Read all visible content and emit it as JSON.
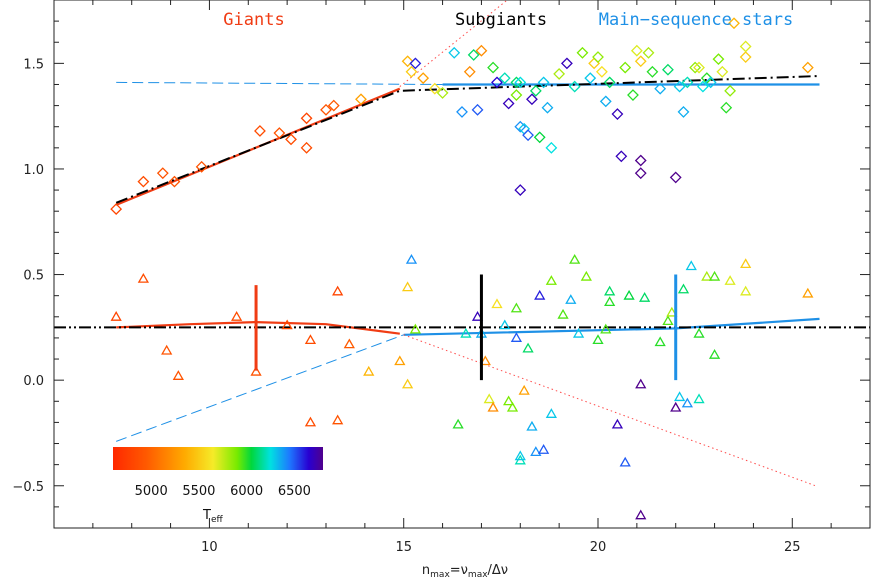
{
  "chart_data": {
    "type": "scatter",
    "title": "",
    "xlabel": "n_max = ν_max/Δν",
    "xlabel_parts": {
      "n": "n",
      "max1": "max",
      "eq": "=ν",
      "max2": "max",
      "rest": "/Δν"
    },
    "xlim": [
      6,
      27
    ],
    "ylim": [
      -0.7,
      1.8
    ],
    "x_ticks": [
      10,
      15,
      20,
      25
    ],
    "y_ticks": [
      -0.5,
      0.0,
      0.5,
      1.0,
      1.5
    ],
    "x_tick_labels": [
      "10",
      "15",
      "20",
      "25"
    ],
    "y_tick_labels": [
      "−0.5",
      "0.0",
      "0.5",
      "1.0",
      "1.5"
    ],
    "region_labels": {
      "giants": "Giants",
      "subgiants": "Subgiants",
      "main_sequence": "Main−sequence stars"
    },
    "colors": {
      "giants": "#f03c14",
      "subgiants": "#000000",
      "main_sequence": "#1e90e6",
      "guide_dotted": "#ff4b4b"
    },
    "colorbar": {
      "title": "T_eff",
      "title_main": "T",
      "title_sub": "eff",
      "range": [
        4600,
        6800
      ],
      "tick_labels": [
        "5000",
        "5500",
        "6000",
        "6500"
      ],
      "tick_values": [
        5000,
        5500,
        6000,
        6500
      ]
    },
    "series": [
      {
        "name": "upper sequence (diamonds)",
        "marker": "diamond",
        "points": [
          {
            "x": 7.6,
            "y": 0.81,
            "t": 4800
          },
          {
            "x": 8.3,
            "y": 0.94,
            "t": 4850
          },
          {
            "x": 8.8,
            "y": 0.98,
            "t": 4900
          },
          {
            "x": 9.1,
            "y": 0.94,
            "t": 4900
          },
          {
            "x": 9.8,
            "y": 1.01,
            "t": 4900
          },
          {
            "x": 11.3,
            "y": 1.18,
            "t": 4850
          },
          {
            "x": 11.8,
            "y": 1.17,
            "t": 4900
          },
          {
            "x": 12.1,
            "y": 1.14,
            "t": 4850
          },
          {
            "x": 12.5,
            "y": 1.24,
            "t": 4800
          },
          {
            "x": 12.5,
            "y": 1.1,
            "t": 4850
          },
          {
            "x": 13.0,
            "y": 1.28,
            "t": 4900
          },
          {
            "x": 13.2,
            "y": 1.3,
            "t": 4950
          },
          {
            "x": 13.9,
            "y": 1.33,
            "t": 5300
          },
          {
            "x": 15.1,
            "y": 1.51,
            "t": 5400
          },
          {
            "x": 15.2,
            "y": 1.46,
            "t": 5500
          },
          {
            "x": 15.3,
            "y": 1.5,
            "t": 6600
          },
          {
            "x": 15.5,
            "y": 1.43,
            "t": 5300
          },
          {
            "x": 15.8,
            "y": 1.38,
            "t": 5600
          },
          {
            "x": 16.0,
            "y": 1.36,
            "t": 5800
          },
          {
            "x": 16.3,
            "y": 1.55,
            "t": 6300
          },
          {
            "x": 16.5,
            "y": 1.27,
            "t": 6400
          },
          {
            "x": 16.7,
            "y": 1.46,
            "t": 5200
          },
          {
            "x": 16.8,
            "y": 1.54,
            "t": 6100
          },
          {
            "x": 16.9,
            "y": 1.28,
            "t": 6500
          },
          {
            "x": 17.0,
            "y": 1.56,
            "t": 5200
          },
          {
            "x": 17.3,
            "y": 1.48,
            "t": 6000
          },
          {
            "x": 17.4,
            "y": 1.41,
            "t": 6650
          },
          {
            "x": 17.6,
            "y": 1.43,
            "t": 6200
          },
          {
            "x": 17.7,
            "y": 1.31,
            "t": 6700
          },
          {
            "x": 17.9,
            "y": 1.35,
            "t": 5900
          },
          {
            "x": 17.9,
            "y": 1.41,
            "t": 6100
          },
          {
            "x": 18.0,
            "y": 1.2,
            "t": 6400
          },
          {
            "x": 18.0,
            "y": 1.41,
            "t": 6250
          },
          {
            "x": 18.1,
            "y": 1.19,
            "t": 6300
          },
          {
            "x": 18.2,
            "y": 1.16,
            "t": 6500
          },
          {
            "x": 18.3,
            "y": 1.33,
            "t": 6700
          },
          {
            "x": 18.4,
            "y": 1.37,
            "t": 6100
          },
          {
            "x": 18.5,
            "y": 1.15,
            "t": 6050
          },
          {
            "x": 18.6,
            "y": 1.41,
            "t": 6300
          },
          {
            "x": 18.7,
            "y": 1.29,
            "t": 6350
          },
          {
            "x": 18.8,
            "y": 1.1,
            "t": 6250
          },
          {
            "x": 18.0,
            "y": 0.9,
            "t": 6700
          },
          {
            "x": 19.0,
            "y": 1.45,
            "t": 5800
          },
          {
            "x": 19.2,
            "y": 1.5,
            "t": 6700
          },
          {
            "x": 19.4,
            "y": 1.39,
            "t": 6200
          },
          {
            "x": 19.6,
            "y": 1.55,
            "t": 5900
          },
          {
            "x": 19.8,
            "y": 1.43,
            "t": 6300
          },
          {
            "x": 19.9,
            "y": 1.5,
            "t": 5500
          },
          {
            "x": 20.0,
            "y": 1.53,
            "t": 5850
          },
          {
            "x": 20.1,
            "y": 1.46,
            "t": 5600
          },
          {
            "x": 20.2,
            "y": 1.32,
            "t": 6350
          },
          {
            "x": 20.3,
            "y": 1.41,
            "t": 6100
          },
          {
            "x": 20.5,
            "y": 1.26,
            "t": 6700
          },
          {
            "x": 20.6,
            "y": 1.06,
            "t": 6700
          },
          {
            "x": 20.7,
            "y": 1.48,
            "t": 5900
          },
          {
            "x": 20.9,
            "y": 1.35,
            "t": 6000
          },
          {
            "x": 21.0,
            "y": 1.56,
            "t": 5700
          },
          {
            "x": 21.1,
            "y": 1.51,
            "t": 5500
          },
          {
            "x": 21.1,
            "y": 0.98,
            "t": 6800
          },
          {
            "x": 21.1,
            "y": 1.04,
            "t": 6800
          },
          {
            "x": 21.3,
            "y": 1.55,
            "t": 5800
          },
          {
            "x": 21.4,
            "y": 1.46,
            "t": 6000
          },
          {
            "x": 21.6,
            "y": 1.38,
            "t": 6350
          },
          {
            "x": 21.8,
            "y": 1.47,
            "t": 6100
          },
          {
            "x": 22.0,
            "y": 0.96,
            "t": 6800
          },
          {
            "x": 22.1,
            "y": 1.39,
            "t": 6300
          },
          {
            "x": 22.2,
            "y": 1.27,
            "t": 6350
          },
          {
            "x": 22.3,
            "y": 1.41,
            "t": 6200
          },
          {
            "x": 22.5,
            "y": 1.48,
            "t": 5850
          },
          {
            "x": 22.6,
            "y": 1.48,
            "t": 5700
          },
          {
            "x": 22.7,
            "y": 1.39,
            "t": 6250
          },
          {
            "x": 22.8,
            "y": 1.43,
            "t": 6000
          },
          {
            "x": 22.9,
            "y": 1.41,
            "t": 6300
          },
          {
            "x": 23.1,
            "y": 1.52,
            "t": 5900
          },
          {
            "x": 23.2,
            "y": 1.46,
            "t": 5700
          },
          {
            "x": 23.3,
            "y": 1.29,
            "t": 6000
          },
          {
            "x": 23.4,
            "y": 1.37,
            "t": 5850
          },
          {
            "x": 23.5,
            "y": 1.69,
            "t": 5400
          },
          {
            "x": 23.8,
            "y": 1.53,
            "t": 5500
          },
          {
            "x": 23.8,
            "y": 1.58,
            "t": 5700
          },
          {
            "x": 25.4,
            "y": 1.48,
            "t": 5300
          }
        ]
      },
      {
        "name": "lower sequence (triangles)",
        "marker": "triangle",
        "points": [
          {
            "x": 7.6,
            "y": 0.3,
            "t": 4800
          },
          {
            "x": 8.3,
            "y": 0.48,
            "t": 4850
          },
          {
            "x": 8.9,
            "y": 0.14,
            "t": 4900
          },
          {
            "x": 9.2,
            "y": 0.02,
            "t": 4900
          },
          {
            "x": 10.7,
            "y": 0.3,
            "t": 4850
          },
          {
            "x": 11.2,
            "y": 0.04,
            "t": 4900
          },
          {
            "x": 12.0,
            "y": 0.26,
            "t": 4850
          },
          {
            "x": 12.6,
            "y": 0.19,
            "t": 4850
          },
          {
            "x": 12.6,
            "y": -0.2,
            "t": 4850
          },
          {
            "x": 13.3,
            "y": 0.42,
            "t": 4800
          },
          {
            "x": 13.3,
            "y": -0.19,
            "t": 4900
          },
          {
            "x": 13.6,
            "y": 0.17,
            "t": 4950
          },
          {
            "x": 14.1,
            "y": 0.04,
            "t": 5400
          },
          {
            "x": 14.9,
            "y": 0.09,
            "t": 5300
          },
          {
            "x": 15.1,
            "y": -0.02,
            "t": 5500
          },
          {
            "x": 15.1,
            "y": 0.44,
            "t": 5500
          },
          {
            "x": 15.2,
            "y": 0.57,
            "t": 6400
          },
          {
            "x": 15.3,
            "y": 0.24,
            "t": 5900
          },
          {
            "x": 16.4,
            "y": -0.21,
            "t": 6000
          },
          {
            "x": 16.6,
            "y": 0.22,
            "t": 6200
          },
          {
            "x": 16.9,
            "y": 0.3,
            "t": 6700
          },
          {
            "x": 17.0,
            "y": 0.22,
            "t": 6350
          },
          {
            "x": 17.1,
            "y": 0.09,
            "t": 5200
          },
          {
            "x": 17.2,
            "y": -0.09,
            "t": 5700
          },
          {
            "x": 17.3,
            "y": -0.13,
            "t": 5200
          },
          {
            "x": 17.4,
            "y": 0.36,
            "t": 5600
          },
          {
            "x": 17.6,
            "y": 0.26,
            "t": 6300
          },
          {
            "x": 17.7,
            "y": -0.1,
            "t": 5900
          },
          {
            "x": 17.8,
            "y": -0.13,
            "t": 5900
          },
          {
            "x": 17.9,
            "y": 0.34,
            "t": 5950
          },
          {
            "x": 17.9,
            "y": 0.2,
            "t": 6500
          },
          {
            "x": 18.0,
            "y": -0.38,
            "t": 6200
          },
          {
            "x": 18.0,
            "y": -0.36,
            "t": 6300
          },
          {
            "x": 18.1,
            "y": -0.05,
            "t": 5300
          },
          {
            "x": 18.2,
            "y": 0.15,
            "t": 6100
          },
          {
            "x": 18.3,
            "y": -0.22,
            "t": 6350
          },
          {
            "x": 18.4,
            "y": -0.34,
            "t": 6400
          },
          {
            "x": 18.5,
            "y": 0.4,
            "t": 6600
          },
          {
            "x": 18.6,
            "y": -0.33,
            "t": 6500
          },
          {
            "x": 18.8,
            "y": 0.47,
            "t": 5900
          },
          {
            "x": 18.8,
            "y": -0.16,
            "t": 6300
          },
          {
            "x": 19.1,
            "y": 0.31,
            "t": 5950
          },
          {
            "x": 19.3,
            "y": 0.38,
            "t": 6350
          },
          {
            "x": 19.4,
            "y": 0.57,
            "t": 5950
          },
          {
            "x": 19.5,
            "y": 0.22,
            "t": 6300
          },
          {
            "x": 19.7,
            "y": 0.49,
            "t": 5900
          },
          {
            "x": 20.0,
            "y": 0.19,
            "t": 6000
          },
          {
            "x": 20.2,
            "y": 0.24,
            "t": 5950
          },
          {
            "x": 20.3,
            "y": 0.37,
            "t": 6000
          },
          {
            "x": 20.3,
            "y": 0.42,
            "t": 6100
          },
          {
            "x": 20.5,
            "y": -0.21,
            "t": 6700
          },
          {
            "x": 20.7,
            "y": -0.39,
            "t": 6500
          },
          {
            "x": 20.8,
            "y": 0.4,
            "t": 6050
          },
          {
            "x": 21.1,
            "y": -0.64,
            "t": 6800
          },
          {
            "x": 21.1,
            "y": -0.02,
            "t": 6800
          },
          {
            "x": 21.2,
            "y": 0.39,
            "t": 6100
          },
          {
            "x": 21.6,
            "y": 0.18,
            "t": 6000
          },
          {
            "x": 21.8,
            "y": 0.28,
            "t": 5950
          },
          {
            "x": 21.9,
            "y": 0.32,
            "t": 5800
          },
          {
            "x": 22.0,
            "y": -0.13,
            "t": 6800
          },
          {
            "x": 22.1,
            "y": -0.08,
            "t": 6300
          },
          {
            "x": 22.2,
            "y": 0.43,
            "t": 6100
          },
          {
            "x": 22.3,
            "y": -0.11,
            "t": 6400
          },
          {
            "x": 22.4,
            "y": 0.54,
            "t": 6300
          },
          {
            "x": 22.6,
            "y": 0.22,
            "t": 6000
          },
          {
            "x": 22.6,
            "y": -0.09,
            "t": 6200
          },
          {
            "x": 22.8,
            "y": 0.49,
            "t": 5800
          },
          {
            "x": 23.0,
            "y": 0.49,
            "t": 5950
          },
          {
            "x": 23.0,
            "y": 0.12,
            "t": 6000
          },
          {
            "x": 23.4,
            "y": 0.47,
            "t": 5700
          },
          {
            "x": 23.8,
            "y": 0.55,
            "t": 5500
          },
          {
            "x": 23.8,
            "y": 0.42,
            "t": 5700
          },
          {
            "x": 25.4,
            "y": 0.41,
            "t": 5300
          }
        ]
      }
    ],
    "lines": [
      {
        "name": "giants upper fit",
        "style": "solid",
        "color_key": "giants",
        "x": [
          7.6,
          14.9
        ],
        "y": [
          0.83,
          1.38
        ]
      },
      {
        "name": "main-sequence upper fit",
        "style": "solid",
        "color_key": "main_sequence",
        "x": [
          16.0,
          25.7
        ],
        "y": [
          1.4,
          1.4
        ]
      },
      {
        "name": "upper dashed extrapolation",
        "style": "dashed",
        "color_key": "main_sequence",
        "x": [
          7.6,
          16.0
        ],
        "y": [
          1.41,
          1.4
        ]
      },
      {
        "name": "upper dash-dot overall fit",
        "style": "dashdot",
        "color_key": "subgiants",
        "x": [
          7.6,
          14.9,
          25.7
        ],
        "y": [
          0.84,
          1.37,
          1.44
        ]
      },
      {
        "name": "upper dotted guide",
        "style": "dotted",
        "color_key": "guide_dotted",
        "x": [
          14.9,
          17.8
        ],
        "y": [
          1.39,
          1.82
        ]
      },
      {
        "name": "giants lower fit",
        "style": "solid",
        "color_key": "giants",
        "x": [
          7.6,
          9.5,
          11.2,
          13.0,
          14.9
        ],
        "y": [
          0.25,
          0.265,
          0.275,
          0.265,
          0.22
        ]
      },
      {
        "name": "main-sequence lower fit",
        "style": "solid",
        "color_key": "main_sequence",
        "x": [
          15.0,
          22.0,
          25.7
        ],
        "y": [
          0.215,
          0.245,
          0.29
        ]
      },
      {
        "name": "lower dashed extrapolation",
        "style": "dashed",
        "color_key": "main_sequence",
        "x": [
          7.6,
          15.0
        ],
        "y": [
          -0.29,
          0.215
        ]
      },
      {
        "name": "lower dash-dot-dot overall fit",
        "style": "dashdotdot",
        "color_key": "subgiants",
        "x": [
          6,
          27
        ],
        "y": [
          0.25,
          0.25
        ]
      },
      {
        "name": "lower dotted guide",
        "style": "dotted",
        "color_key": "guide_dotted",
        "x": [
          15.0,
          25.6
        ],
        "y": [
          0.215,
          -0.5
        ]
      }
    ],
    "error_bars": [
      {
        "x": 11.2,
        "y0": 0.045,
        "y1": 0.45,
        "color_key": "giants"
      },
      {
        "x": 17.0,
        "y0": 0.0,
        "y1": 0.5,
        "color_key": "subgiants"
      },
      {
        "x": 22.0,
        "y0": 0.0,
        "y1": 0.5,
        "color_key": "main_sequence"
      }
    ]
  }
}
